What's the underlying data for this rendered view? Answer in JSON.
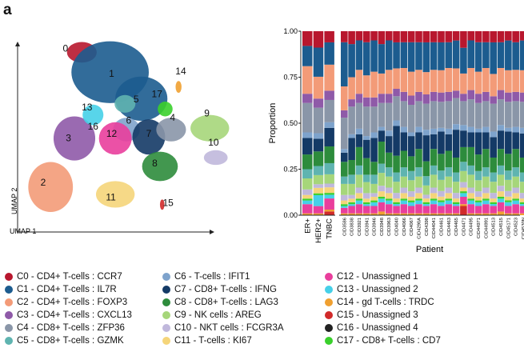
{
  "figure": {
    "panel_letter": "a"
  },
  "umap_plot": {
    "xlabel": "UMAP 1",
    "ylabel": "UMAP 2",
    "cluster_labels": [
      "0",
      "1",
      "2",
      "3",
      "4",
      "5",
      "6",
      "7",
      "8",
      "9",
      "10",
      "11",
      "12",
      "13",
      "14",
      "15",
      "16",
      "17"
    ]
  },
  "chart_data": {
    "type": "bar",
    "stacked": true,
    "title": "",
    "xlabel": "Patient",
    "ylabel": "Proportion",
    "ylim": [
      0,
      1
    ],
    "yticks": [
      "0.00",
      "0.25",
      "0.50",
      "0.75",
      "1.00"
    ],
    "group_categories": [
      "ER+",
      "HER2+",
      "TNBC"
    ],
    "patient_categories": [
      "CID3586",
      "CID3838",
      "CID3921",
      "CID3941",
      "CID3946",
      "CID3948",
      "CID3963",
      "CID4040",
      "CID4066",
      "CID4067",
      "CID4290A",
      "CID4398",
      "CID44041",
      "CID4461",
      "CID4463",
      "CID4465",
      "CID4471",
      "CID4495",
      "CID44971",
      "CID44991",
      "CID4513",
      "CID4515",
      "CID45171",
      "CID4523",
      "CID4530N",
      "CID4535"
    ],
    "series_order_bottom_to_top": [
      "C15",
      "C16",
      "C14",
      "C12",
      "C13",
      "C17",
      "C11",
      "C10",
      "C9",
      "C5",
      "C8",
      "C7",
      "C6",
      "C4",
      "C3",
      "C2",
      "C1",
      "C0"
    ],
    "colors": {
      "C0": "#b8172e",
      "C1": "#1c5c8f",
      "C2": "#f39b78",
      "C3": "#8f5aa8",
      "C4": "#8a96a8",
      "C5": "#5fb4b0",
      "C6": "#7ea3cc",
      "C7": "#143a66",
      "C8": "#2d8c3c",
      "C9": "#a6d67a",
      "C10": "#c0b8dc",
      "C11": "#f5d57a",
      "C12": "#e93e9c",
      "C13": "#46d0e8",
      "C14": "#f0a030",
      "C15": "#d12a2a",
      "C16": "#222222",
      "C17": "#3ad02c"
    },
    "group_values": [
      {
        "C15": 0,
        "C16": 0,
        "C14": 0.01,
        "C12": 0.05,
        "C13": 0.02,
        "C17": 0.01,
        "C11": 0.02,
        "C10": 0.03,
        "C9": 0.06,
        "C5": 0.05,
        "C8": 0.08,
        "C7": 0.09,
        "C6": 0.03,
        "C4": 0.16,
        "C3": 0.05,
        "C2": 0.15,
        "C1": 0.11,
        "C0": 0.08
      },
      {
        "C15": 0,
        "C16": 0,
        "C14": 0.01,
        "C12": 0.04,
        "C13": 0.06,
        "C17": 0.01,
        "C11": 0.03,
        "C10": 0.02,
        "C9": 0.05,
        "C5": 0.05,
        "C8": 0.08,
        "C7": 0.07,
        "C6": 0.03,
        "C4": 0.14,
        "C3": 0.05,
        "C2": 0.12,
        "C1": 0.16,
        "C0": 0.09
      },
      {
        "C15": 0.02,
        "C16": 0,
        "C14": 0.01,
        "C12": 0.06,
        "C13": 0.02,
        "C17": 0.01,
        "C11": 0.03,
        "C10": 0.02,
        "C9": 0.05,
        "C5": 0.06,
        "C8": 0.09,
        "C7": 0.1,
        "C6": 0.03,
        "C4": 0.12,
        "C3": 0.05,
        "C2": 0.14,
        "C1": 0.12,
        "C0": 0.06
      }
    ],
    "patient_values": [
      {
        "C15": 0,
        "C16": 0,
        "C14": 0.01,
        "C12": 0.03,
        "C13": 0.01,
        "C17": 0.01,
        "C11": 0.02,
        "C10": 0.03,
        "C9": 0.06,
        "C5": 0.04,
        "C8": 0.08,
        "C7": 0.05,
        "C6": 0.02,
        "C4": 0.17,
        "C3": 0.04,
        "C2": 0.13,
        "C1": 0.24,
        "C0": 0.06
      },
      {
        "C15": 0,
        "C16": 0,
        "C14": 0.01,
        "C12": 0.04,
        "C13": 0.01,
        "C17": 0.01,
        "C11": 0.02,
        "C10": 0.02,
        "C9": 0.06,
        "C5": 0.05,
        "C8": 0.08,
        "C7": 0.12,
        "C6": 0.02,
        "C4": 0.15,
        "C3": 0.04,
        "C2": 0.12,
        "C1": 0.18,
        "C0": 0.07
      },
      {
        "C15": 0,
        "C16": 0,
        "C14": 0.01,
        "C12": 0.05,
        "C13": 0.02,
        "C17": 0.01,
        "C11": 0.03,
        "C10": 0.03,
        "C9": 0.07,
        "C5": 0.05,
        "C8": 0.1,
        "C7": 0.07,
        "C6": 0.03,
        "C4": 0.14,
        "C3": 0.05,
        "C2": 0.13,
        "C1": 0.16,
        "C0": 0.05
      },
      {
        "C15": 0,
        "C16": 0,
        "C14": 0.01,
        "C12": 0.04,
        "C13": 0.01,
        "C17": 0.01,
        "C11": 0.02,
        "C10": 0.03,
        "C9": 0.06,
        "C5": 0.04,
        "C8": 0.09,
        "C7": 0.1,
        "C6": 0.02,
        "C4": 0.16,
        "C3": 0.05,
        "C2": 0.12,
        "C1": 0.18,
        "C0": 0.06
      },
      {
        "C15": 0,
        "C16": 0,
        "C14": 0.01,
        "C12": 0.04,
        "C13": 0.02,
        "C17": 0.01,
        "C11": 0.02,
        "C10": 0.02,
        "C9": 0.05,
        "C5": 0.05,
        "C8": 0.07,
        "C7": 0.13,
        "C6": 0.03,
        "C4": 0.14,
        "C3": 0.05,
        "C2": 0.14,
        "C1": 0.17,
        "C0": 0.05
      },
      {
        "C15": 0,
        "C16": 0,
        "C14": 0.02,
        "C12": 0.05,
        "C13": 0.02,
        "C17": 0.01,
        "C11": 0.03,
        "C10": 0.03,
        "C9": 0.07,
        "C5": 0.05,
        "C8": 0.12,
        "C7": 0.06,
        "C6": 0.02,
        "C4": 0.13,
        "C3": 0.05,
        "C2": 0.11,
        "C1": 0.16,
        "C0": 0.07
      },
      {
        "C15": 0,
        "C16": 0,
        "C14": 0.01,
        "C12": 0.05,
        "C13": 0.02,
        "C17": 0.01,
        "C11": 0.03,
        "C10": 0.03,
        "C9": 0.06,
        "C5": 0.05,
        "C8": 0.08,
        "C7": 0.09,
        "C6": 0.03,
        "C4": 0.15,
        "C3": 0.05,
        "C2": 0.13,
        "C1": 0.16,
        "C0": 0.05
      },
      {
        "C15": 0,
        "C16": 0,
        "C14": 0.01,
        "C12": 0.04,
        "C13": 0.01,
        "C17": 0.01,
        "C11": 0.02,
        "C10": 0.03,
        "C9": 0.06,
        "C5": 0.05,
        "C8": 0.09,
        "C7": 0.16,
        "C6": 0.03,
        "C4": 0.13,
        "C3": 0.04,
        "C2": 0.11,
        "C1": 0.14,
        "C0": 0.06
      },
      {
        "C15": 0,
        "C16": 0,
        "C14": 0.01,
        "C12": 0.05,
        "C13": 0.02,
        "C17": 0.01,
        "C11": 0.03,
        "C10": 0.03,
        "C9": 0.06,
        "C5": 0.05,
        "C8": 0.09,
        "C7": 0.1,
        "C6": 0.03,
        "C4": 0.14,
        "C3": 0.05,
        "C2": 0.13,
        "C1": 0.14,
        "C0": 0.06
      },
      {
        "C15": 0,
        "C16": 0,
        "C14": 0.01,
        "C12": 0.04,
        "C13": 0.02,
        "C17": 0.01,
        "C11": 0.02,
        "C10": 0.03,
        "C9": 0.06,
        "C5": 0.05,
        "C8": 0.08,
        "C7": 0.11,
        "C6": 0.02,
        "C4": 0.15,
        "C3": 0.05,
        "C2": 0.13,
        "C1": 0.16,
        "C0": 0.06
      },
      {
        "C15": 0,
        "C16": 0,
        "C14": 0.01,
        "C12": 0.05,
        "C13": 0.02,
        "C17": 0.01,
        "C11": 0.03,
        "C10": 0.03,
        "C9": 0.06,
        "C5": 0.05,
        "C8": 0.1,
        "C7": 0.09,
        "C6": 0.03,
        "C4": 0.14,
        "C3": 0.05,
        "C2": 0.12,
        "C1": 0.15,
        "C0": 0.06
      },
      {
        "C15": 0,
        "C16": 0,
        "C14": 0.01,
        "C12": 0.04,
        "C13": 0.01,
        "C17": 0.01,
        "C11": 0.02,
        "C10": 0.02,
        "C9": 0.05,
        "C5": 0.05,
        "C8": 0.08,
        "C7": 0.14,
        "C6": 0.03,
        "C4": 0.14,
        "C3": 0.05,
        "C2": 0.12,
        "C1": 0.16,
        "C0": 0.06
      },
      {
        "C15": 0,
        "C16": 0,
        "C14": 0.01,
        "C12": 0.05,
        "C13": 0.02,
        "C17": 0.01,
        "C11": 0.03,
        "C10": 0.03,
        "C9": 0.07,
        "C5": 0.05,
        "C8": 0.09,
        "C7": 0.08,
        "C6": 0.03,
        "C4": 0.15,
        "C3": 0.05,
        "C2": 0.12,
        "C1": 0.15,
        "C0": 0.06
      },
      {
        "C15": 0,
        "C16": 0,
        "C14": 0.01,
        "C12": 0.04,
        "C13": 0.02,
        "C17": 0.01,
        "C11": 0.02,
        "C10": 0.03,
        "C9": 0.06,
        "C5": 0.05,
        "C8": 0.09,
        "C7": 0.12,
        "C6": 0.02,
        "C4": 0.14,
        "C3": 0.05,
        "C2": 0.12,
        "C1": 0.15,
        "C0": 0.06
      },
      {
        "C15": 0,
        "C16": 0,
        "C14": 0.01,
        "C12": 0.05,
        "C13": 0.02,
        "C17": 0.01,
        "C11": 0.03,
        "C10": 0.03,
        "C9": 0.06,
        "C5": 0.05,
        "C8": 0.09,
        "C7": 0.09,
        "C6": 0.03,
        "C4": 0.15,
        "C3": 0.05,
        "C2": 0.13,
        "C1": 0.14,
        "C0": 0.06
      },
      {
        "C15": 0,
        "C16": 0,
        "C14": 0.01,
        "C12": 0.04,
        "C13": 0.01,
        "C17": 0.01,
        "C11": 0.02,
        "C10": 0.03,
        "C9": 0.06,
        "C5": 0.05,
        "C8": 0.08,
        "C7": 0.15,
        "C6": 0.03,
        "C4": 0.14,
        "C3": 0.04,
        "C2": 0.12,
        "C1": 0.15,
        "C0": 0.05
      },
      {
        "C15": 0.05,
        "C16": 0,
        "C14": 0.01,
        "C12": 0.04,
        "C13": 0.02,
        "C17": 0.01,
        "C11": 0.02,
        "C10": 0.03,
        "C9": 0.06,
        "C5": 0.05,
        "C8": 0.08,
        "C7": 0.09,
        "C6": 0.03,
        "C4": 0.13,
        "C3": 0.04,
        "C2": 0.11,
        "C1": 0.14,
        "C0": 0.09
      },
      {
        "C15": 0,
        "C16": 0,
        "C14": 0.01,
        "C12": 0.05,
        "C13": 0.02,
        "C17": 0.01,
        "C11": 0.03,
        "C10": 0.03,
        "C9": 0.07,
        "C5": 0.05,
        "C8": 0.1,
        "C7": 0.08,
        "C6": 0.03,
        "C4": 0.15,
        "C3": 0.05,
        "C2": 0.12,
        "C1": 0.15,
        "C0": 0.05
      },
      {
        "C15": 0,
        "C16": 0,
        "C14": 0.01,
        "C12": 0.04,
        "C13": 0.02,
        "C17": 0.01,
        "C11": 0.02,
        "C10": 0.03,
        "C9": 0.06,
        "C5": 0.05,
        "C8": 0.09,
        "C7": 0.12,
        "C6": 0.02,
        "C4": 0.14,
        "C3": 0.05,
        "C2": 0.12,
        "C1": 0.16,
        "C0": 0.06
      },
      {
        "C15": 0,
        "C16": 0,
        "C14": 0.01,
        "C12": 0.05,
        "C13": 0.02,
        "C17": 0.01,
        "C11": 0.03,
        "C10": 0.03,
        "C9": 0.06,
        "C5": 0.05,
        "C8": 0.1,
        "C7": 0.09,
        "C6": 0.03,
        "C4": 0.14,
        "C3": 0.05,
        "C2": 0.13,
        "C1": 0.14,
        "C0": 0.06
      },
      {
        "C15": 0,
        "C16": 0,
        "C14": 0.01,
        "C12": 0.04,
        "C13": 0.01,
        "C17": 0.01,
        "C11": 0.02,
        "C10": 0.03,
        "C9": 0.06,
        "C5": 0.05,
        "C8": 0.08,
        "C7": 0.11,
        "C6": 0.03,
        "C4": 0.15,
        "C3": 0.04,
        "C2": 0.12,
        "C1": 0.17,
        "C0": 0.06
      },
      {
        "C15": 0,
        "C16": 0,
        "C14": 0.02,
        "C12": 0.05,
        "C13": 0.02,
        "C17": 0.01,
        "C11": 0.03,
        "C10": 0.03,
        "C9": 0.06,
        "C5": 0.05,
        "C8": 0.09,
        "C7": 0.1,
        "C6": 0.03,
        "C4": 0.14,
        "C3": 0.05,
        "C2": 0.12,
        "C1": 0.14,
        "C0": 0.06
      },
      {
        "C15": 0,
        "C16": 0,
        "C14": 0.01,
        "C12": 0.04,
        "C13": 0.02,
        "C17": 0.01,
        "C11": 0.02,
        "C10": 0.03,
        "C9": 0.06,
        "C5": 0.05,
        "C8": 0.09,
        "C7": 0.12,
        "C6": 0.02,
        "C4": 0.14,
        "C3": 0.05,
        "C2": 0.12,
        "C1": 0.16,
        "C0": 0.05
      },
      {
        "C15": 0,
        "C16": 0,
        "C14": 0.01,
        "C12": 0.05,
        "C13": 0.02,
        "C17": 0.01,
        "C11": 0.03,
        "C10": 0.03,
        "C9": 0.06,
        "C5": 0.05,
        "C8": 0.1,
        "C7": 0.09,
        "C6": 0.03,
        "C4": 0.14,
        "C3": 0.05,
        "C2": 0.12,
        "C1": 0.15,
        "C0": 0.06
      },
      {
        "C15": 0,
        "C16": 0,
        "C14": 0.01,
        "C12": 0.04,
        "C13": 0.01,
        "C17": 0.01,
        "C11": 0.02,
        "C10": 0.03,
        "C9": 0.06,
        "C5": 0.05,
        "C8": 0.08,
        "C7": 0.13,
        "C6": 0.03,
        "C4": 0.14,
        "C3": 0.05,
        "C2": 0.12,
        "C1": 0.16,
        "C0": 0.05
      },
      {
        "C15": 0,
        "C16": 0,
        "C14": 0.01,
        "C12": 0.05,
        "C13": 0.02,
        "C17": 0.01,
        "C11": 0.03,
        "C10": 0.03,
        "C9": 0.07,
        "C5": 0.05,
        "C8": 0.09,
        "C7": 0.09,
        "C6": 0.03,
        "C4": 0.15,
        "C3": 0.05,
        "C2": 0.12,
        "C1": 0.14,
        "C0": 0.06
      }
    ]
  },
  "legend": [
    {
      "id": "C0",
      "label": "C0 - CD4+ T-cells : CCR7",
      "color": "#b8172e"
    },
    {
      "id": "C1",
      "label": "C1 - CD4+ T-cells : IL7R",
      "color": "#1c5c8f"
    },
    {
      "id": "C2",
      "label": "C2 - CD4+ T-cells : FOXP3",
      "color": "#f39b78"
    },
    {
      "id": "C3",
      "label": "C3 - CD4+ T-cells : CXCL13",
      "color": "#8f5aa8"
    },
    {
      "id": "C4",
      "label": "C4 - CD8+ T-cells : ZFP36",
      "color": "#8a96a8"
    },
    {
      "id": "C5",
      "label": "C5 - CD8+ T-cells : GZMK",
      "color": "#5fb4b0"
    },
    {
      "id": "C6",
      "label": "C6 - T-cells : IFIT1",
      "color": "#7ea3cc"
    },
    {
      "id": "C7",
      "label": "C7 - CD8+ T-cells : IFNG",
      "color": "#143a66"
    },
    {
      "id": "C8",
      "label": "C8 - CD8+ T-cells : LAG3",
      "color": "#2d8c3c"
    },
    {
      "id": "C9",
      "label": "C9 - NK cells : AREG",
      "color": "#a6d67a"
    },
    {
      "id": "C10",
      "label": "C10 - NKT cells : FCGR3A",
      "color": "#c0b8dc"
    },
    {
      "id": "C11",
      "label": "C11 - T-cells : KI67",
      "color": "#f5d57a"
    },
    {
      "id": "C12",
      "label": "C12 - Unassigned 1",
      "color": "#e93e9c"
    },
    {
      "id": "C13",
      "label": "C13 - Unassigned 2",
      "color": "#46d0e8"
    },
    {
      "id": "C14",
      "label": "C14 - gd T-cells : TRDC",
      "color": "#f0a030"
    },
    {
      "id": "C15",
      "label": "C15 - Unassigned 3",
      "color": "#d12a2a"
    },
    {
      "id": "C16",
      "label": "C16 - Unassigned 4",
      "color": "#222222"
    },
    {
      "id": "C17",
      "label": "C17 - CD8+ T-cells : CD7",
      "color": "#3ad02c"
    }
  ]
}
